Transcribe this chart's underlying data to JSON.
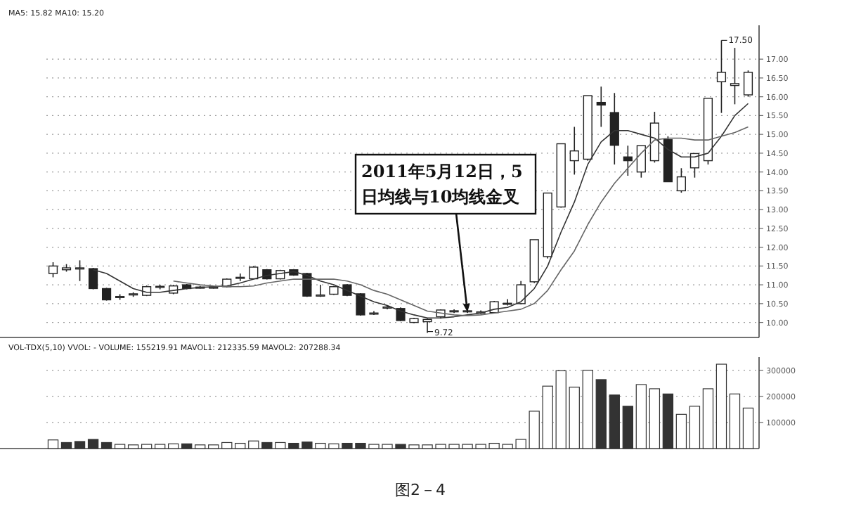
{
  "chart_data": [
    {
      "type": "candlestick",
      "title": "MA5: 15.82  MA10: 15.20",
      "grid": "y",
      "tick_labels": "y",
      "color": "#222222",
      "categories": [
        null,
        null,
        null,
        null,
        null,
        null,
        null,
        null,
        null,
        null,
        null,
        null,
        null,
        null,
        null,
        null,
        null,
        null,
        null,
        null,
        null,
        null,
        null,
        null,
        null,
        null,
        null,
        null,
        null,
        null,
        null,
        null,
        null,
        null,
        null,
        null,
        null,
        null,
        null,
        null,
        null,
        null,
        null,
        null,
        null,
        null,
        null,
        null,
        null,
        null,
        null,
        null,
        null
      ],
      "ohlc": [
        [
          11.3,
          11.6,
          11.2,
          11.5
        ],
        [
          11.4,
          11.55,
          11.35,
          11.45
        ],
        [
          11.42,
          11.65,
          11.1,
          11.45
        ],
        [
          11.43,
          11.45,
          10.88,
          10.9
        ],
        [
          10.9,
          10.92,
          10.58,
          10.6
        ],
        [
          10.66,
          10.75,
          10.6,
          10.69
        ],
        [
          10.74,
          10.8,
          10.68,
          10.76
        ],
        [
          10.72,
          10.98,
          10.7,
          10.95
        ],
        [
          10.94,
          11.0,
          10.88,
          10.96
        ],
        [
          10.78,
          11.0,
          10.75,
          10.97
        ],
        [
          11.0,
          11.02,
          10.88,
          10.9
        ],
        [
          10.92,
          10.97,
          10.9,
          10.94
        ],
        [
          10.92,
          10.96,
          10.9,
          10.94
        ],
        [
          10.95,
          11.17,
          10.93,
          11.15
        ],
        [
          11.18,
          11.3,
          11.1,
          11.2
        ],
        [
          11.16,
          11.5,
          11.15,
          11.47
        ],
        [
          11.4,
          11.42,
          11.14,
          11.16
        ],
        [
          11.16,
          11.4,
          11.14,
          11.38
        ],
        [
          11.4,
          11.42,
          11.24,
          11.26
        ],
        [
          11.3,
          11.32,
          10.68,
          10.7
        ],
        [
          10.71,
          11.0,
          10.68,
          10.73
        ],
        [
          10.75,
          10.97,
          10.73,
          10.95
        ],
        [
          11.0,
          11.02,
          10.7,
          10.72
        ],
        [
          10.76,
          10.78,
          10.18,
          10.2
        ],
        [
          10.23,
          10.3,
          10.2,
          10.25
        ],
        [
          10.39,
          10.45,
          10.35,
          10.41
        ],
        [
          10.37,
          10.4,
          10.03,
          10.05
        ],
        [
          10.0,
          10.12,
          9.98,
          10.1
        ],
        [
          10.02,
          10.1,
          9.72,
          10.08
        ],
        [
          10.15,
          10.35,
          10.1,
          10.33
        ],
        [
          10.29,
          10.35,
          10.25,
          10.31
        ],
        [
          10.29,
          10.35,
          10.25,
          10.31
        ],
        [
          10.26,
          10.32,
          10.22,
          10.28
        ],
        [
          10.26,
          10.57,
          10.24,
          10.55
        ],
        [
          10.49,
          10.62,
          10.45,
          10.51
        ],
        [
          10.5,
          11.1,
          10.48,
          11.0
        ],
        [
          11.08,
          12.2,
          11.05,
          12.2
        ],
        [
          11.75,
          13.44,
          11.7,
          13.44
        ],
        [
          13.07,
          14.75,
          13.05,
          14.75
        ],
        [
          14.3,
          15.2,
          13.93,
          14.56
        ],
        [
          14.34,
          16.03,
          14.3,
          16.03
        ],
        [
          15.85,
          16.27,
          15.2,
          15.78
        ],
        [
          15.58,
          16.1,
          14.2,
          14.71
        ],
        [
          14.4,
          14.7,
          13.9,
          14.3
        ],
        [
          14.0,
          14.7,
          13.85,
          14.7
        ],
        [
          14.3,
          15.6,
          14.25,
          15.3
        ],
        [
          14.86,
          14.95,
          13.74,
          13.74
        ],
        [
          13.5,
          14.1,
          13.45,
          13.87
        ],
        [
          14.11,
          14.49,
          13.85,
          14.49
        ],
        [
          14.3,
          15.96,
          14.2,
          15.96
        ],
        [
          16.4,
          17.5,
          15.57,
          16.65
        ],
        [
          16.3,
          17.3,
          15.8,
          16.35
        ],
        [
          16.05,
          16.7,
          16.0,
          16.65
        ]
      ],
      "series": [
        {
          "type": "line",
          "color": "#333333",
          "values": [
            null,
            null,
            null,
            11.4,
            11.3,
            11.1,
            10.9,
            10.8,
            10.8,
            10.85,
            10.9,
            10.93,
            10.95,
            10.97,
            11.05,
            11.15,
            11.25,
            11.3,
            11.35,
            11.25,
            11.1,
            11.0,
            10.85,
            10.7,
            10.55,
            10.45,
            10.3,
            10.2,
            10.12,
            10.12,
            10.15,
            10.2,
            10.25,
            10.35,
            10.4,
            10.55,
            10.9,
            11.5,
            12.4,
            13.2,
            14.2,
            14.8,
            15.1,
            15.1,
            15.0,
            14.9,
            14.6,
            14.4,
            14.4,
            14.5,
            14.95,
            15.5,
            15.82
          ]
        },
        {
          "type": "line",
          "color": "#666666",
          "values": [
            null,
            null,
            null,
            null,
            null,
            null,
            null,
            null,
            null,
            11.1,
            11.05,
            11.0,
            10.97,
            10.95,
            10.95,
            10.97,
            11.05,
            11.1,
            11.15,
            11.15,
            11.15,
            11.15,
            11.1,
            11.0,
            10.85,
            10.75,
            10.6,
            10.45,
            10.3,
            10.25,
            10.2,
            10.18,
            10.2,
            10.25,
            10.3,
            10.35,
            10.5,
            10.85,
            11.4,
            11.9,
            12.6,
            13.2,
            13.7,
            14.1,
            14.5,
            14.85,
            14.9,
            14.9,
            14.85,
            14.85,
            14.95,
            15.05,
            15.2
          ]
        }
      ],
      "ylim": [
        9.6,
        17.9
      ],
      "yticks": [
        {
          "value": 10,
          "label": "10.00"
        },
        {
          "value": 10.5,
          "label": "10.50"
        },
        {
          "value": 11,
          "label": "11.00"
        },
        {
          "value": 11.5,
          "label": "11.50"
        },
        {
          "value": 12,
          "label": "12.00"
        },
        {
          "value": 12.5,
          "label": "12.50"
        },
        {
          "value": 13,
          "label": "13.00"
        },
        {
          "value": 13.5,
          "label": "13.50"
        },
        {
          "value": 14,
          "label": "14.00"
        },
        {
          "value": 14.5,
          "label": "14.50"
        },
        {
          "value": 15,
          "label": "15.00"
        },
        {
          "value": 15.5,
          "label": "15.50"
        },
        {
          "value": 16,
          "label": "16.00"
        },
        {
          "value": 16.5,
          "label": "16.50"
        },
        {
          "value": 17,
          "label": "17.00"
        }
      ],
      "annotations": [
        "2011年5月12日，5日均线与10均线金叉",
        "17.50",
        "9.72"
      ]
    },
    {
      "type": "bar",
      "grid": "y",
      "tick_labels": "y",
      "title": "VOL-TDX(5,10) VVOL: -  VOLUME: 155219.91  MAVOL1: 212335.59  MAVOL2: 207288.34",
      "categories": [
        null,
        null,
        null,
        null,
        null,
        null,
        null,
        null,
        null,
        null,
        null,
        null,
        null,
        null,
        null,
        null,
        null,
        null,
        null,
        null,
        null,
        null,
        null,
        null,
        null,
        null,
        null,
        null,
        null,
        null,
        null,
        null,
        null,
        null,
        null,
        null,
        null,
        null,
        null,
        null,
        null,
        null,
        null,
        null,
        null,
        null,
        null,
        null,
        null,
        null,
        null,
        null,
        null
      ],
      "values": [
        33000,
        23000,
        27000,
        35000,
        23000,
        16000,
        14000,
        16000,
        16000,
        18000,
        18000,
        14000,
        14000,
        23000,
        20000,
        29000,
        23000,
        23000,
        20000,
        25000,
        20000,
        18000,
        20000,
        20000,
        16000,
        16000,
        16000,
        14000,
        14000,
        16000,
        16000,
        16000,
        16000,
        20000,
        16000,
        35000,
        143000,
        239000,
        298000,
        235000,
        300000,
        264000,
        205000,
        162000,
        245000,
        229000,
        209000,
        131000,
        162000,
        229000,
        323000,
        209000,
        155000
      ],
      "colors": [
        "#ffffff",
        "#333333",
        "#333333",
        "#333333",
        "#333333",
        "#ffffff",
        "#ffffff",
        "#ffffff",
        "#ffffff",
        "#ffffff",
        "#333333",
        "#ffffff",
        "#ffffff",
        "#ffffff",
        "#ffffff",
        "#ffffff",
        "#333333",
        "#ffffff",
        "#333333",
        "#333333",
        "#ffffff",
        "#ffffff",
        "#333333",
        "#333333",
        "#ffffff",
        "#ffffff",
        "#333333",
        "#ffffff",
        "#ffffff",
        "#ffffff",
        "#ffffff",
        "#ffffff",
        "#ffffff",
        "#ffffff",
        "#ffffff",
        "#ffffff",
        "#ffffff",
        "#ffffff",
        "#ffffff",
        "#ffffff",
        "#ffffff",
        "#333333",
        "#333333",
        "#333333",
        "#ffffff",
        "#ffffff",
        "#333333",
        "#ffffff",
        "#ffffff",
        "#ffffff",
        "#ffffff",
        "#ffffff",
        "#ffffff"
      ],
      "ylim": [
        0,
        350000
      ],
      "yticks": [
        100000,
        200000,
        300000
      ],
      "annotations": [
        "图2－4"
      ]
    }
  ]
}
